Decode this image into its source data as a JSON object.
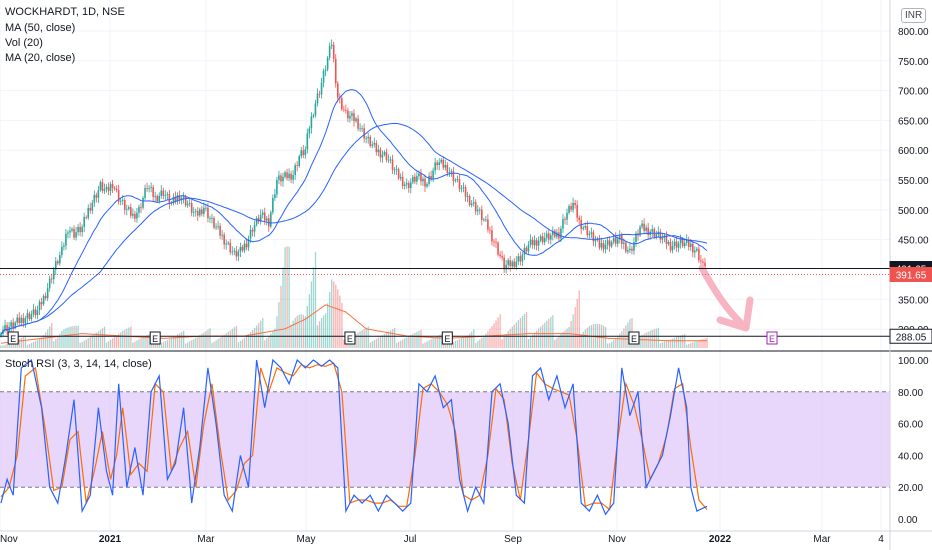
{
  "legend": {
    "symbol": "WOCKHARDT, 1D, NSE",
    "ma50": "MA (50, close)",
    "vol": "Vol (20)",
    "ma20": "MA (20, close)",
    "rsi": "Stoch RSI (3, 3, 14, 14, close)"
  },
  "currency": "INR",
  "colors": {
    "up": "#26a69a",
    "down": "#ef5350",
    "ma": "#2962ff",
    "vol_ma": "#ff7043",
    "rsi_k": "#2962ff",
    "rsi_d": "#ff6d00",
    "rsi_band": "#e1c8fa",
    "arrow": "#f7b5c4",
    "earnings_future": "#9c27b0"
  },
  "chart_data": {
    "type": "candlestick",
    "x_ticks": [
      "Nov",
      "2021",
      "Mar",
      "May",
      "Jul",
      "Sep",
      "Nov",
      "2022",
      "Mar",
      "4"
    ],
    "y_ticks": [
      "800.00",
      "750.00",
      "700.00",
      "650.00",
      "600.00",
      "550.00",
      "500.00",
      "450.00",
      "350.00",
      "300.00"
    ],
    "ylim": [
      265,
      815
    ],
    "price_labels": [
      {
        "value": 401.65,
        "text": "401.65"
      },
      {
        "value": 391.65,
        "text": "391.65"
      },
      {
        "value": 288.05,
        "text": "288.05"
      }
    ],
    "close_keypoints": [
      [
        0,
        300
      ],
      [
        5,
        305
      ],
      [
        12,
        320
      ],
      [
        18,
        330
      ],
      [
        22,
        360
      ],
      [
        26,
        400
      ],
      [
        30,
        430
      ],
      [
        33,
        470
      ],
      [
        36,
        460
      ],
      [
        40,
        470
      ],
      [
        43,
        500
      ],
      [
        46,
        520
      ],
      [
        49,
        540
      ],
      [
        52,
        530
      ],
      [
        55,
        545
      ],
      [
        58,
        520
      ],
      [
        62,
        500
      ],
      [
        65,
        490
      ],
      [
        68,
        500
      ],
      [
        72,
        540
      ],
      [
        76,
        520
      ],
      [
        80,
        530
      ],
      [
        84,
        510
      ],
      [
        88,
        525
      ],
      [
        92,
        510
      ],
      [
        96,
        490
      ],
      [
        100,
        505
      ],
      [
        104,
        480
      ],
      [
        108,
        460
      ],
      [
        112,
        440
      ],
      [
        115,
        425
      ],
      [
        118,
        430
      ],
      [
        121,
        445
      ],
      [
        124,
        470
      ],
      [
        128,
        490
      ],
      [
        132,
        480
      ],
      [
        136,
        550
      ],
      [
        140,
        555
      ],
      [
        144,
        560
      ],
      [
        147,
        590
      ],
      [
        150,
        600
      ],
      [
        152,
        640
      ],
      [
        155,
        680
      ],
      [
        157,
        700
      ],
      [
        160,
        740
      ],
      [
        163,
        780
      ],
      [
        166,
        690
      ],
      [
        170,
        660
      ],
      [
        175,
        650
      ],
      [
        180,
        620
      ],
      [
        185,
        600
      ],
      [
        190,
        590
      ],
      [
        195,
        560
      ],
      [
        200,
        540
      ],
      [
        205,
        555
      ],
      [
        210,
        545
      ],
      [
        215,
        580
      ],
      [
        220,
        570
      ],
      [
        225,
        545
      ],
      [
        230,
        520
      ],
      [
        235,
        500
      ],
      [
        240,
        470
      ],
      [
        244,
        440
      ],
      [
        248,
        405
      ],
      [
        252,
        410
      ],
      [
        256,
        420
      ],
      [
        260,
        440
      ],
      [
        265,
        450
      ],
      [
        270,
        455
      ],
      [
        275,
        460
      ],
      [
        278,
        490
      ],
      [
        282,
        510
      ],
      [
        285,
        480
      ],
      [
        290,
        460
      ],
      [
        295,
        440
      ],
      [
        300,
        445
      ],
      [
        305,
        450
      ],
      [
        310,
        430
      ],
      [
        315,
        470
      ],
      [
        320,
        465
      ],
      [
        325,
        455
      ],
      [
        330,
        440
      ],
      [
        335,
        445
      ],
      [
        340,
        440
      ],
      [
        343,
        430
      ],
      [
        346,
        405
      ],
      [
        348,
        392
      ]
    ],
    "volume_keypoints": [
      [
        0,
        2
      ],
      [
        20,
        4
      ],
      [
        30,
        9
      ],
      [
        40,
        5
      ],
      [
        60,
        6
      ],
      [
        80,
        4
      ],
      [
        100,
        5
      ],
      [
        120,
        6
      ],
      [
        135,
        9
      ],
      [
        140,
        30
      ],
      [
        150,
        12
      ],
      [
        155,
        25
      ],
      [
        160,
        18
      ],
      [
        163,
        26
      ],
      [
        170,
        6
      ],
      [
        200,
        5
      ],
      [
        230,
        4
      ],
      [
        250,
        10
      ],
      [
        280,
        8
      ],
      [
        285,
        15
      ],
      [
        300,
        4
      ],
      [
        310,
        8
      ],
      [
        330,
        4
      ],
      [
        348,
        3
      ]
    ],
    "vol_ma_keypoints": [
      [
        0,
        2
      ],
      [
        20,
        4
      ],
      [
        40,
        6
      ],
      [
        60,
        5
      ],
      [
        80,
        4
      ],
      [
        100,
        5
      ],
      [
        120,
        5
      ],
      [
        140,
        8
      ],
      [
        150,
        12
      ],
      [
        160,
        18
      ],
      [
        170,
        15
      ],
      [
        180,
        8
      ],
      [
        200,
        5
      ],
      [
        220,
        4
      ],
      [
        240,
        5
      ],
      [
        260,
        6
      ],
      [
        280,
        6
      ],
      [
        300,
        4
      ],
      [
        330,
        3
      ],
      [
        348,
        3
      ]
    ],
    "rsi": {
      "ylim": [
        -5,
        105
      ],
      "y_ticks": [
        "100.00",
        "80.00",
        "60.00",
        "40.00",
        "20.00",
        "0.00"
      ],
      "band": [
        20,
        80
      ],
      "k_keypoints": [
        [
          0,
          10
        ],
        [
          3,
          25
        ],
        [
          6,
          15
        ],
        [
          10,
          95
        ],
        [
          15,
          100
        ],
        [
          20,
          70
        ],
        [
          24,
          20
        ],
        [
          28,
          10
        ],
        [
          32,
          40
        ],
        [
          36,
          75
        ],
        [
          40,
          5
        ],
        [
          44,
          15
        ],
        [
          48,
          70
        ],
        [
          52,
          30
        ],
        [
          55,
          15
        ],
        [
          58,
          85
        ],
        [
          62,
          20
        ],
        [
          66,
          45
        ],
        [
          70,
          15
        ],
        [
          74,
          80
        ],
        [
          78,
          90
        ],
        [
          82,
          25
        ],
        [
          86,
          35
        ],
        [
          90,
          70
        ],
        [
          94,
          10
        ],
        [
          98,
          45
        ],
        [
          102,
          95
        ],
        [
          106,
          60
        ],
        [
          110,
          15
        ],
        [
          114,
          5
        ],
        [
          118,
          40
        ],
        [
          122,
          20
        ],
        [
          126,
          100
        ],
        [
          130,
          70
        ],
        [
          134,
          100
        ],
        [
          138,
          95
        ],
        [
          142,
          85
        ],
        [
          146,
          100
        ],
        [
          150,
          95
        ],
        [
          154,
          100
        ],
        [
          158,
          96
        ],
        [
          162,
          100
        ],
        [
          166,
          95
        ],
        [
          170,
          5
        ],
        [
          174,
          15
        ],
        [
          178,
          10
        ],
        [
          182,
          15
        ],
        [
          186,
          5
        ],
        [
          190,
          15
        ],
        [
          194,
          10
        ],
        [
          198,
          5
        ],
        [
          202,
          10
        ],
        [
          206,
          85
        ],
        [
          210,
          80
        ],
        [
          214,
          90
        ],
        [
          218,
          70
        ],
        [
          222,
          75
        ],
        [
          226,
          25
        ],
        [
          230,
          5
        ],
        [
          234,
          20
        ],
        [
          238,
          10
        ],
        [
          242,
          80
        ],
        [
          246,
          85
        ],
        [
          250,
          60
        ],
        [
          254,
          15
        ],
        [
          258,
          10
        ],
        [
          262,
          90
        ],
        [
          266,
          95
        ],
        [
          270,
          75
        ],
        [
          274,
          90
        ],
        [
          278,
          70
        ],
        [
          282,
          85
        ],
        [
          286,
          10
        ],
        [
          290,
          5
        ],
        [
          294,
          15
        ],
        [
          298,
          3
        ],
        [
          302,
          10
        ],
        [
          306,
          95
        ],
        [
          310,
          65
        ],
        [
          314,
          80
        ],
        [
          318,
          20
        ],
        [
          322,
          30
        ],
        [
          326,
          40
        ],
        [
          330,
          65
        ],
        [
          334,
          95
        ],
        [
          338,
          70
        ],
        [
          340,
          20
        ],
        [
          343,
          5
        ],
        [
          348,
          8
        ]
      ],
      "d_keypoints": [
        [
          0,
          14
        ],
        [
          4,
          20
        ],
        [
          8,
          40
        ],
        [
          12,
          90
        ],
        [
          17,
          95
        ],
        [
          22,
          55
        ],
        [
          26,
          18
        ],
        [
          30,
          20
        ],
        [
          34,
          50
        ],
        [
          38,
          55
        ],
        [
          42,
          10
        ],
        [
          46,
          30
        ],
        [
          50,
          55
        ],
        [
          54,
          25
        ],
        [
          57,
          40
        ],
        [
          60,
          70
        ],
        [
          64,
          28
        ],
        [
          68,
          35
        ],
        [
          72,
          30
        ],
        [
          76,
          85
        ],
        [
          80,
          80
        ],
        [
          84,
          30
        ],
        [
          88,
          45
        ],
        [
          92,
          55
        ],
        [
          96,
          20
        ],
        [
          100,
          60
        ],
        [
          104,
          85
        ],
        [
          108,
          45
        ],
        [
          112,
          12
        ],
        [
          116,
          18
        ],
        [
          120,
          35
        ],
        [
          124,
          40
        ],
        [
          128,
          95
        ],
        [
          132,
          80
        ],
        [
          136,
          95
        ],
        [
          140,
          92
        ],
        [
          144,
          90
        ],
        [
          148,
          97
        ],
        [
          152,
          95
        ],
        [
          156,
          97
        ],
        [
          160,
          96
        ],
        [
          164,
          98
        ],
        [
          168,
          80
        ],
        [
          172,
          10
        ],
        [
          176,
          12
        ],
        [
          180,
          12
        ],
        [
          184,
          10
        ],
        [
          188,
          10
        ],
        [
          192,
          12
        ],
        [
          196,
          8
        ],
        [
          200,
          8
        ],
        [
          204,
          40
        ],
        [
          208,
          82
        ],
        [
          212,
          85
        ],
        [
          216,
          80
        ],
        [
          220,
          72
        ],
        [
          224,
          55
        ],
        [
          228,
          15
        ],
        [
          232,
          12
        ],
        [
          236,
          15
        ],
        [
          240,
          40
        ],
        [
          244,
          82
        ],
        [
          248,
          75
        ],
        [
          252,
          35
        ],
        [
          256,
          12
        ],
        [
          260,
          50
        ],
        [
          264,
          92
        ],
        [
          268,
          85
        ],
        [
          272,
          82
        ],
        [
          276,
          80
        ],
        [
          280,
          78
        ],
        [
          284,
          50
        ],
        [
          288,
          8
        ],
        [
          292,
          10
        ],
        [
          296,
          10
        ],
        [
          300,
          6
        ],
        [
          304,
          50
        ],
        [
          308,
          85
        ],
        [
          312,
          72
        ],
        [
          316,
          50
        ],
        [
          320,
          25
        ],
        [
          324,
          35
        ],
        [
          328,
          52
        ],
        [
          332,
          82
        ],
        [
          336,
          85
        ],
        [
          340,
          45
        ],
        [
          344,
          12
        ],
        [
          348,
          6
        ]
      ]
    },
    "earnings_markers": [
      6,
      76,
      172,
      220,
      312
    ],
    "future_earnings_marker": "E"
  }
}
